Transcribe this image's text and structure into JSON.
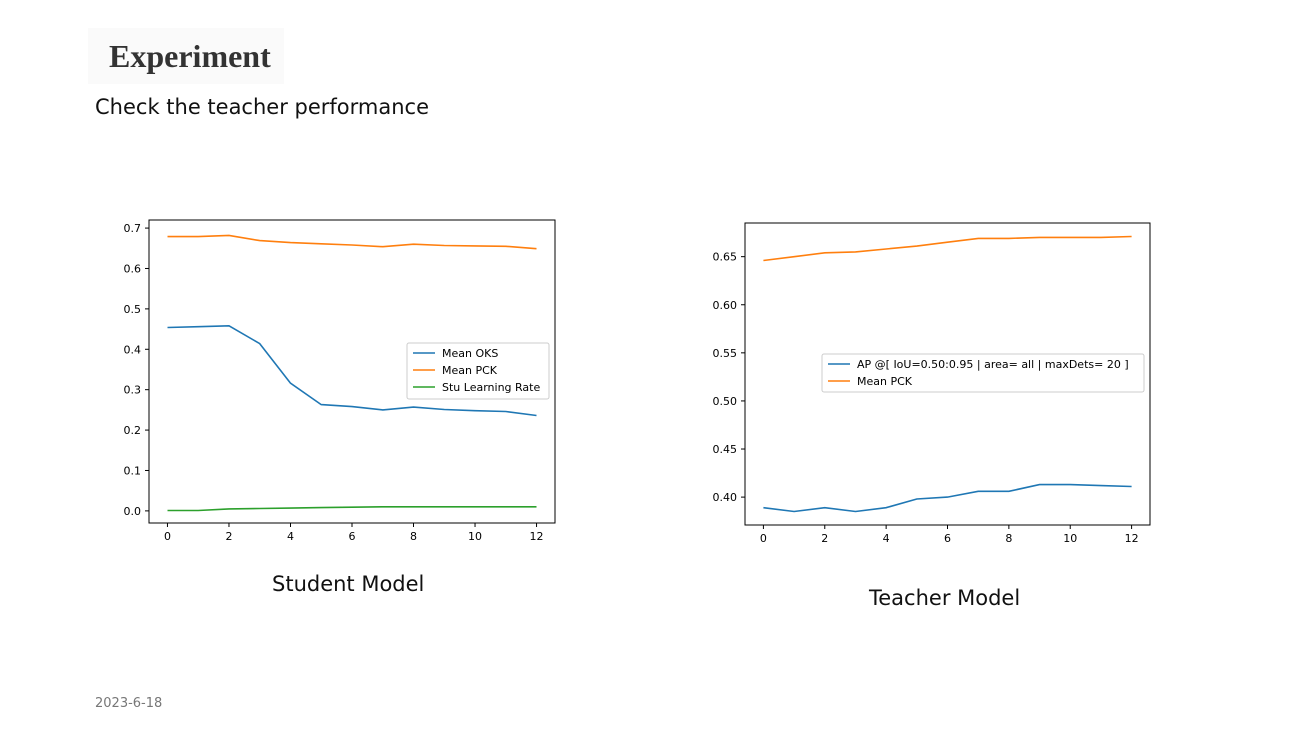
{
  "slide": {
    "title": "Experiment",
    "subtitle": "Check the teacher performance",
    "date": "2023-6-18"
  },
  "captions": {
    "student": "Student Model",
    "teacher": "Teacher Model"
  },
  "chart_data": [
    {
      "id": "student",
      "type": "line",
      "x": [
        0,
        1,
        2,
        3,
        4,
        5,
        6,
        7,
        8,
        9,
        10,
        11,
        12
      ],
      "xticks": [
        0,
        2,
        4,
        6,
        8,
        10,
        12
      ],
      "xticklabels": [
        "0",
        "2",
        "4",
        "6",
        "8",
        "10",
        "12"
      ],
      "xlim": [
        -0.6,
        12.6
      ],
      "ylim": [
        -0.03,
        0.72
      ],
      "yticks": [
        0.0,
        0.1,
        0.2,
        0.3,
        0.4,
        0.5,
        0.6,
        0.7
      ],
      "yticklabels": [
        "0.0",
        "0.1",
        "0.2",
        "0.3",
        "0.4",
        "0.5",
        "0.6",
        "0.7"
      ],
      "legend_position": "center-right",
      "series": [
        {
          "name": "Mean OKS",
          "color": "#1f77b4",
          "values": [
            0.454,
            0.456,
            0.458,
            0.414,
            0.316,
            0.263,
            0.258,
            0.25,
            0.257,
            0.251,
            0.248,
            0.246,
            0.236
          ]
        },
        {
          "name": "Mean PCK",
          "color": "#ff7f0e",
          "values": [
            0.679,
            0.679,
            0.682,
            0.669,
            0.664,
            0.661,
            0.658,
            0.654,
            0.66,
            0.657,
            0.656,
            0.655,
            0.649
          ]
        },
        {
          "name": "Stu Learning Rate",
          "color": "#2ca02c",
          "values": [
            0.001,
            0.001,
            0.005,
            0.006,
            0.007,
            0.008,
            0.009,
            0.01,
            0.01,
            0.01,
            0.01,
            0.01,
            0.01
          ]
        }
      ]
    },
    {
      "id": "teacher",
      "type": "line",
      "x": [
        0,
        1,
        2,
        3,
        4,
        5,
        6,
        7,
        8,
        9,
        10,
        11,
        12
      ],
      "xticks": [
        0,
        2,
        4,
        6,
        8,
        10,
        12
      ],
      "xticklabels": [
        "0",
        "2",
        "4",
        "6",
        "8",
        "10",
        "12"
      ],
      "xlim": [
        -0.6,
        12.6
      ],
      "ylim": [
        0.371,
        0.685
      ],
      "yticks": [
        0.4,
        0.45,
        0.5,
        0.55,
        0.6,
        0.65
      ],
      "yticklabels": [
        "0.40",
        "0.45",
        "0.50",
        "0.55",
        "0.60",
        "0.65"
      ],
      "legend_position": "center-right",
      "series": [
        {
          "name": "AP @[ IoU=0.50:0.95 | area= all | maxDets= 20 ]",
          "color": "#1f77b4",
          "values": [
            0.389,
            0.385,
            0.389,
            0.385,
            0.389,
            0.398,
            0.4,
            0.406,
            0.406,
            0.413,
            0.413,
            0.412,
            0.411
          ]
        },
        {
          "name": "Mean PCK",
          "color": "#ff7f0e",
          "values": [
            0.646,
            0.65,
            0.654,
            0.655,
            0.658,
            0.661,
            0.665,
            0.669,
            0.669,
            0.67,
            0.67,
            0.67,
            0.671
          ]
        }
      ]
    }
  ]
}
